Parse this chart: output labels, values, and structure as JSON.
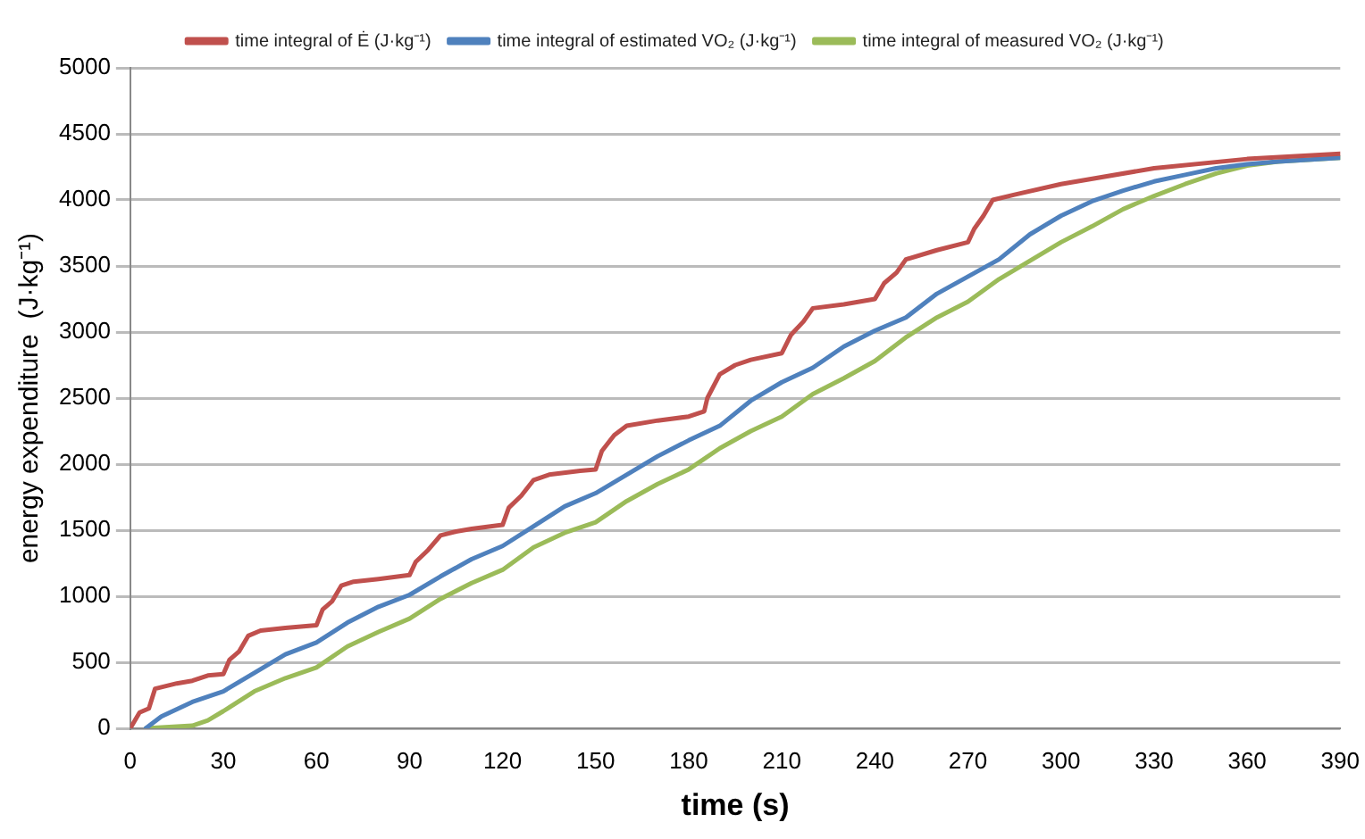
{
  "chart_data": {
    "type": "line",
    "xlabel": "time (s)",
    "ylabel": "energy expenditure  (J·kg⁻¹)",
    "xlim": [
      0,
      390
    ],
    "xticks": [
      0,
      30,
      60,
      90,
      120,
      150,
      180,
      210,
      240,
      270,
      300,
      330,
      360,
      390
    ],
    "ylim": [
      0,
      5000
    ],
    "yticks": [
      0,
      500,
      1000,
      1500,
      2000,
      2500,
      3000,
      3500,
      4000,
      4500,
      5000
    ],
    "grid": "y",
    "legend": "top",
    "marker": "none",
    "line_style": "solid",
    "series": [
      {
        "name": "time integral of Ė (J·kg⁻¹)",
        "color": "#c0504d",
        "x": [
          0,
          3,
          6,
          8,
          15,
          20,
          25,
          30,
          32,
          35,
          38,
          42,
          50,
          55,
          60,
          62,
          65,
          68,
          72,
          80,
          90,
          92,
          96,
          100,
          105,
          110,
          120,
          122,
          126,
          130,
          135,
          145,
          150,
          152,
          156,
          160,
          170,
          180,
          185,
          186,
          190,
          195,
          200,
          210,
          213,
          217,
          220,
          230,
          240,
          243,
          247,
          250,
          260,
          270,
          272,
          275,
          278,
          285,
          300,
          330,
          360,
          390
        ],
        "values": [
          0,
          120,
          150,
          300,
          340,
          360,
          400,
          410,
          520,
          580,
          700,
          740,
          760,
          770,
          780,
          900,
          960,
          1080,
          1110,
          1130,
          1160,
          1260,
          1350,
          1460,
          1490,
          1510,
          1540,
          1670,
          1760,
          1880,
          1920,
          1950,
          1960,
          2100,
          2220,
          2290,
          2330,
          2360,
          2400,
          2500,
          2680,
          2750,
          2790,
          2840,
          2980,
          3080,
          3180,
          3210,
          3250,
          3370,
          3450,
          3550,
          3620,
          3680,
          3780,
          3880,
          4000,
          4040,
          4120,
          4240,
          4310,
          4350
        ]
      },
      {
        "name": "time integral of estimated VO₂ (J·kg⁻¹)",
        "color": "#4f81bd",
        "x": [
          5,
          10,
          20,
          30,
          40,
          50,
          60,
          70,
          80,
          90,
          100,
          110,
          120,
          130,
          140,
          150,
          160,
          170,
          180,
          190,
          200,
          210,
          220,
          230,
          240,
          250,
          260,
          270,
          280,
          290,
          300,
          310,
          320,
          330,
          340,
          350,
          360,
          370,
          390
        ],
        "values": [
          0,
          90,
          200,
          280,
          420,
          560,
          650,
          800,
          920,
          1010,
          1150,
          1280,
          1380,
          1530,
          1680,
          1780,
          1920,
          2060,
          2180,
          2290,
          2480,
          2620,
          2730,
          2890,
          3010,
          3110,
          3290,
          3420,
          3550,
          3740,
          3880,
          3990,
          4070,
          4140,
          4190,
          4240,
          4270,
          4290,
          4320
        ]
      },
      {
        "name": "time integral of measured VO₂ (J·kg⁻¹)",
        "color": "#9bbb59",
        "x": [
          5,
          20,
          25,
          30,
          40,
          50,
          60,
          70,
          80,
          90,
          100,
          110,
          120,
          130,
          140,
          150,
          160,
          170,
          180,
          190,
          200,
          210,
          220,
          230,
          240,
          250,
          260,
          270,
          280,
          290,
          300,
          310,
          320,
          330,
          340,
          350,
          360,
          370,
          390
        ],
        "values": [
          0,
          20,
          60,
          130,
          280,
          380,
          460,
          620,
          730,
          830,
          980,
          1100,
          1200,
          1370,
          1480,
          1560,
          1720,
          1850,
          1960,
          2120,
          2250,
          2360,
          2530,
          2650,
          2780,
          2960,
          3110,
          3230,
          3400,
          3540,
          3680,
          3800,
          3930,
          4030,
          4120,
          4200,
          4260,
          4290,
          4320
        ]
      }
    ]
  }
}
